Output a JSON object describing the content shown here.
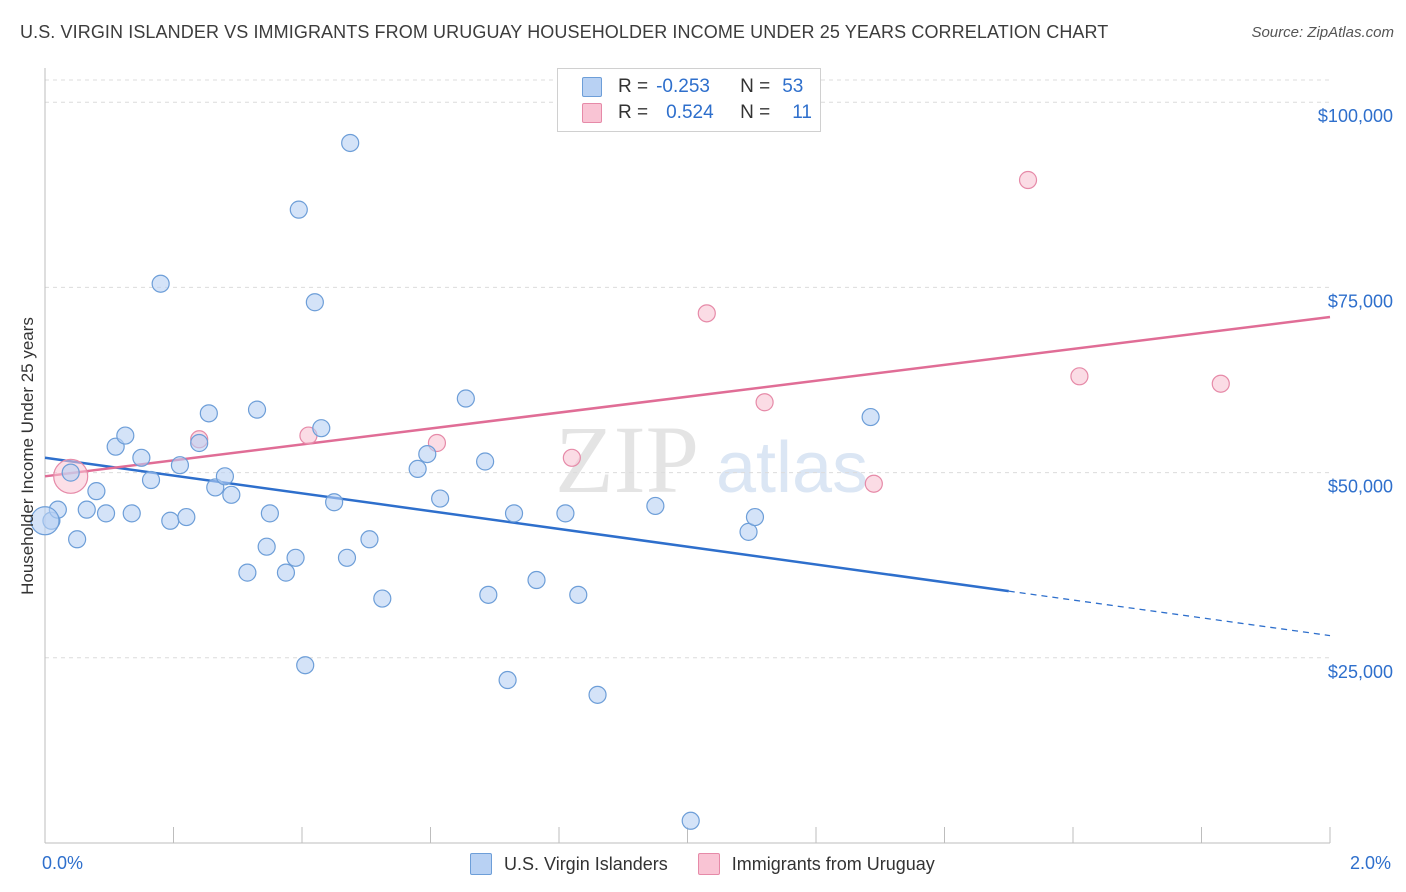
{
  "chart_data": {
    "type": "scatter",
    "title": "U.S. VIRGIN ISLANDER VS IMMIGRANTS FROM URUGUAY HOUSEHOLDER INCOME UNDER 25 YEARS CORRELATION CHART",
    "source": "Source: ZipAtlas.com",
    "ylabel": "Householder Income Under 25 years",
    "xlim": [
      0,
      2.0
    ],
    "ylim": [
      0,
      103000
    ],
    "x_tick_labels": {
      "min": "0.0%",
      "max": "2.0%"
    },
    "y_ticks": [
      {
        "value": 25000,
        "label": "$25,000"
      },
      {
        "value": 50000,
        "label": "$50,000"
      },
      {
        "value": 75000,
        "label": "$75,000"
      },
      {
        "value": 100000,
        "label": "$100,000"
      }
    ],
    "legend": {
      "r_label": "R =",
      "n_label": "N =",
      "rows": [
        {
          "r": "-0.253",
          "n": "53"
        },
        {
          "r": "0.524",
          "n": "11"
        }
      ]
    },
    "series": [
      {
        "name": "U.S. Virgin Islanders",
        "color": "#6d9ed8",
        "fill": "#b8d1f3",
        "line_color": "#2e6fcc",
        "trend": {
          "x0": 0.0,
          "y0": 52000,
          "x1": 1.5,
          "y1": 34000,
          "x_dash_end": 2.0,
          "y_dash_end": 28000
        },
        "points": [
          [
            0.01,
            43500
          ],
          [
            0.02,
            45000
          ],
          [
            0.04,
            50000
          ],
          [
            0.05,
            41000
          ],
          [
            0.065,
            45000
          ],
          [
            0.08,
            47500
          ],
          [
            0.095,
            44500
          ],
          [
            0.11,
            53500
          ],
          [
            0.125,
            55000
          ],
          [
            0.135,
            44500
          ],
          [
            0.15,
            52000
          ],
          [
            0.165,
            49000
          ],
          [
            0.18,
            75500
          ],
          [
            0.195,
            43500
          ],
          [
            0.21,
            51000
          ],
          [
            0.22,
            44000
          ],
          [
            0.24,
            54000
          ],
          [
            0.255,
            58000
          ],
          [
            0.265,
            48000
          ],
          [
            0.28,
            49500
          ],
          [
            0.29,
            47000
          ],
          [
            0.315,
            36500
          ],
          [
            0.33,
            58500
          ],
          [
            0.345,
            40000
          ],
          [
            0.35,
            44500
          ],
          [
            0.375,
            36500
          ],
          [
            0.39,
            38500
          ],
          [
            0.395,
            85500
          ],
          [
            0.405,
            24000
          ],
          [
            0.42,
            73000
          ],
          [
            0.43,
            56000
          ],
          [
            0.45,
            46000
          ],
          [
            0.47,
            38500
          ],
          [
            0.475,
            94500
          ],
          [
            0.505,
            41000
          ],
          [
            0.525,
            33000
          ],
          [
            0.58,
            50500
          ],
          [
            0.595,
            52500
          ],
          [
            0.615,
            46500
          ],
          [
            0.655,
            60000
          ],
          [
            0.685,
            51500
          ],
          [
            0.69,
            33500
          ],
          [
            0.72,
            22000
          ],
          [
            0.73,
            44500
          ],
          [
            0.765,
            35500
          ],
          [
            0.81,
            44500
          ],
          [
            0.83,
            33500
          ],
          [
            0.86,
            20000
          ],
          [
            0.95,
            45500
          ],
          [
            1.005,
            3000
          ],
          [
            1.095,
            42000
          ],
          [
            1.105,
            44000
          ],
          [
            1.285,
            57500
          ]
        ]
      },
      {
        "name": "Immigrants from Uruguay",
        "color": "#e68aa8",
        "fill": "#f9c4d4",
        "line_color": "#e06d96",
        "trend": {
          "x0": 0.0,
          "y0": 49500,
          "x1": 2.0,
          "y1": 71000
        },
        "points": [
          [
            0.04,
            49500
          ],
          [
            0.24,
            54500
          ],
          [
            0.41,
            55000
          ],
          [
            0.61,
            54000
          ],
          [
            0.82,
            52000
          ],
          [
            1.03,
            71500
          ],
          [
            1.12,
            59500
          ],
          [
            1.29,
            48500
          ],
          [
            1.53,
            89500
          ],
          [
            1.61,
            63000
          ],
          [
            1.83,
            62000
          ]
        ]
      }
    ]
  }
}
